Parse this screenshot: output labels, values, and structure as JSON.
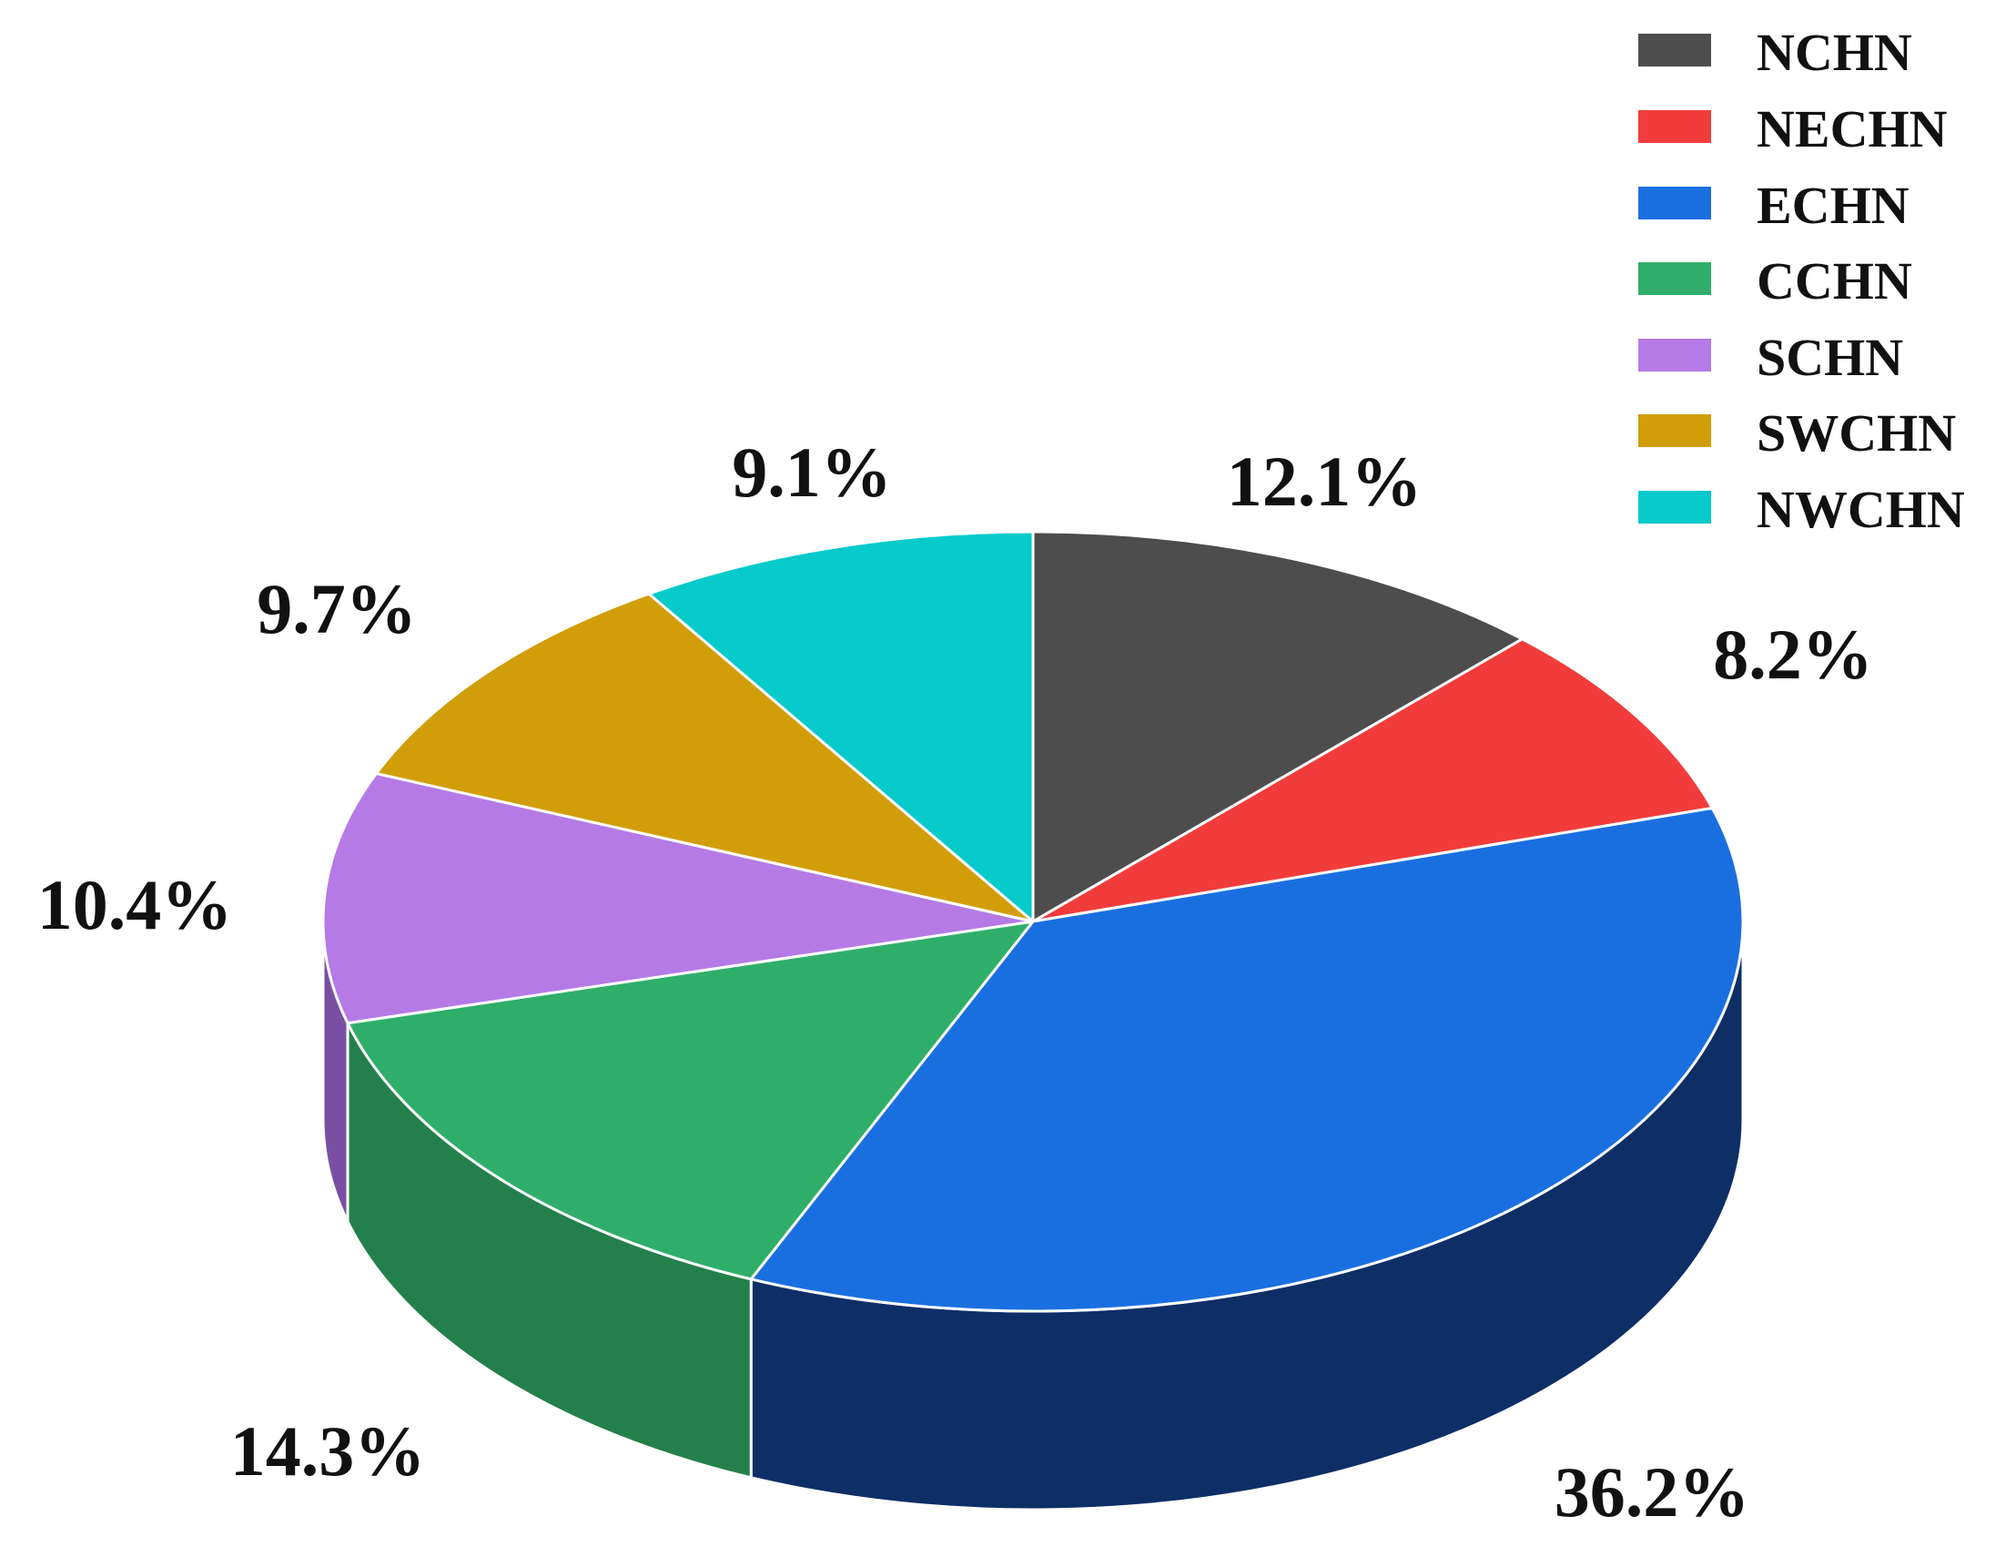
{
  "chart_data": {
    "type": "pie",
    "style": "3d",
    "categories": [
      "NCHN",
      "NECHN",
      "ECHN",
      "CCHN",
      "SCHN",
      "SWCHN",
      "NWCHN"
    ],
    "values": [
      12.1,
      8.2,
      36.2,
      14.3,
      10.4,
      9.7,
      9.1
    ],
    "labels": [
      "12.1%",
      "8.2%",
      "36.2%",
      "14.3%",
      "10.4%",
      "9.7%",
      "9.1%"
    ],
    "colors": [
      "#4d4d4d",
      "#f23c3c",
      "#1a6fe0",
      "#2fae6a",
      "#b57ae6",
      "#d19e0a",
      "#07cacb"
    ],
    "side_colors": [
      "#2b2b2b",
      "#a11f1f",
      "#0e2e66",
      "#24804a",
      "#7a4fa3",
      "#8f6b05",
      "#048a8b"
    ],
    "legend_position": "top-right",
    "start_angle": "12 o'clock",
    "direction": "clockwise"
  }
}
